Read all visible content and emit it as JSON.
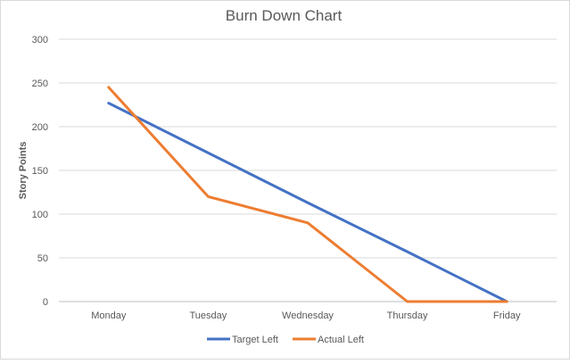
{
  "chart_data": {
    "type": "line",
    "title": "Burn Down Chart",
    "xlabel": "",
    "ylabel": "Story Points",
    "categories": [
      "Monday",
      "Tuesday",
      "Wednesday",
      "Thursday",
      "Friday"
    ],
    "series": [
      {
        "name": "Target Left",
        "color": "#4472C4",
        "values": [
          227,
          170,
          113,
          57,
          0
        ]
      },
      {
        "name": "Actual Left",
        "color": "#ED7D31",
        "values": [
          245,
          120,
          90,
          0,
          0
        ]
      }
    ],
    "ylim": [
      0,
      300
    ],
    "yticks": [
      "0",
      "50",
      "100",
      "150",
      "200",
      "250",
      "300"
    ],
    "grid": true,
    "legend": "bottom"
  }
}
